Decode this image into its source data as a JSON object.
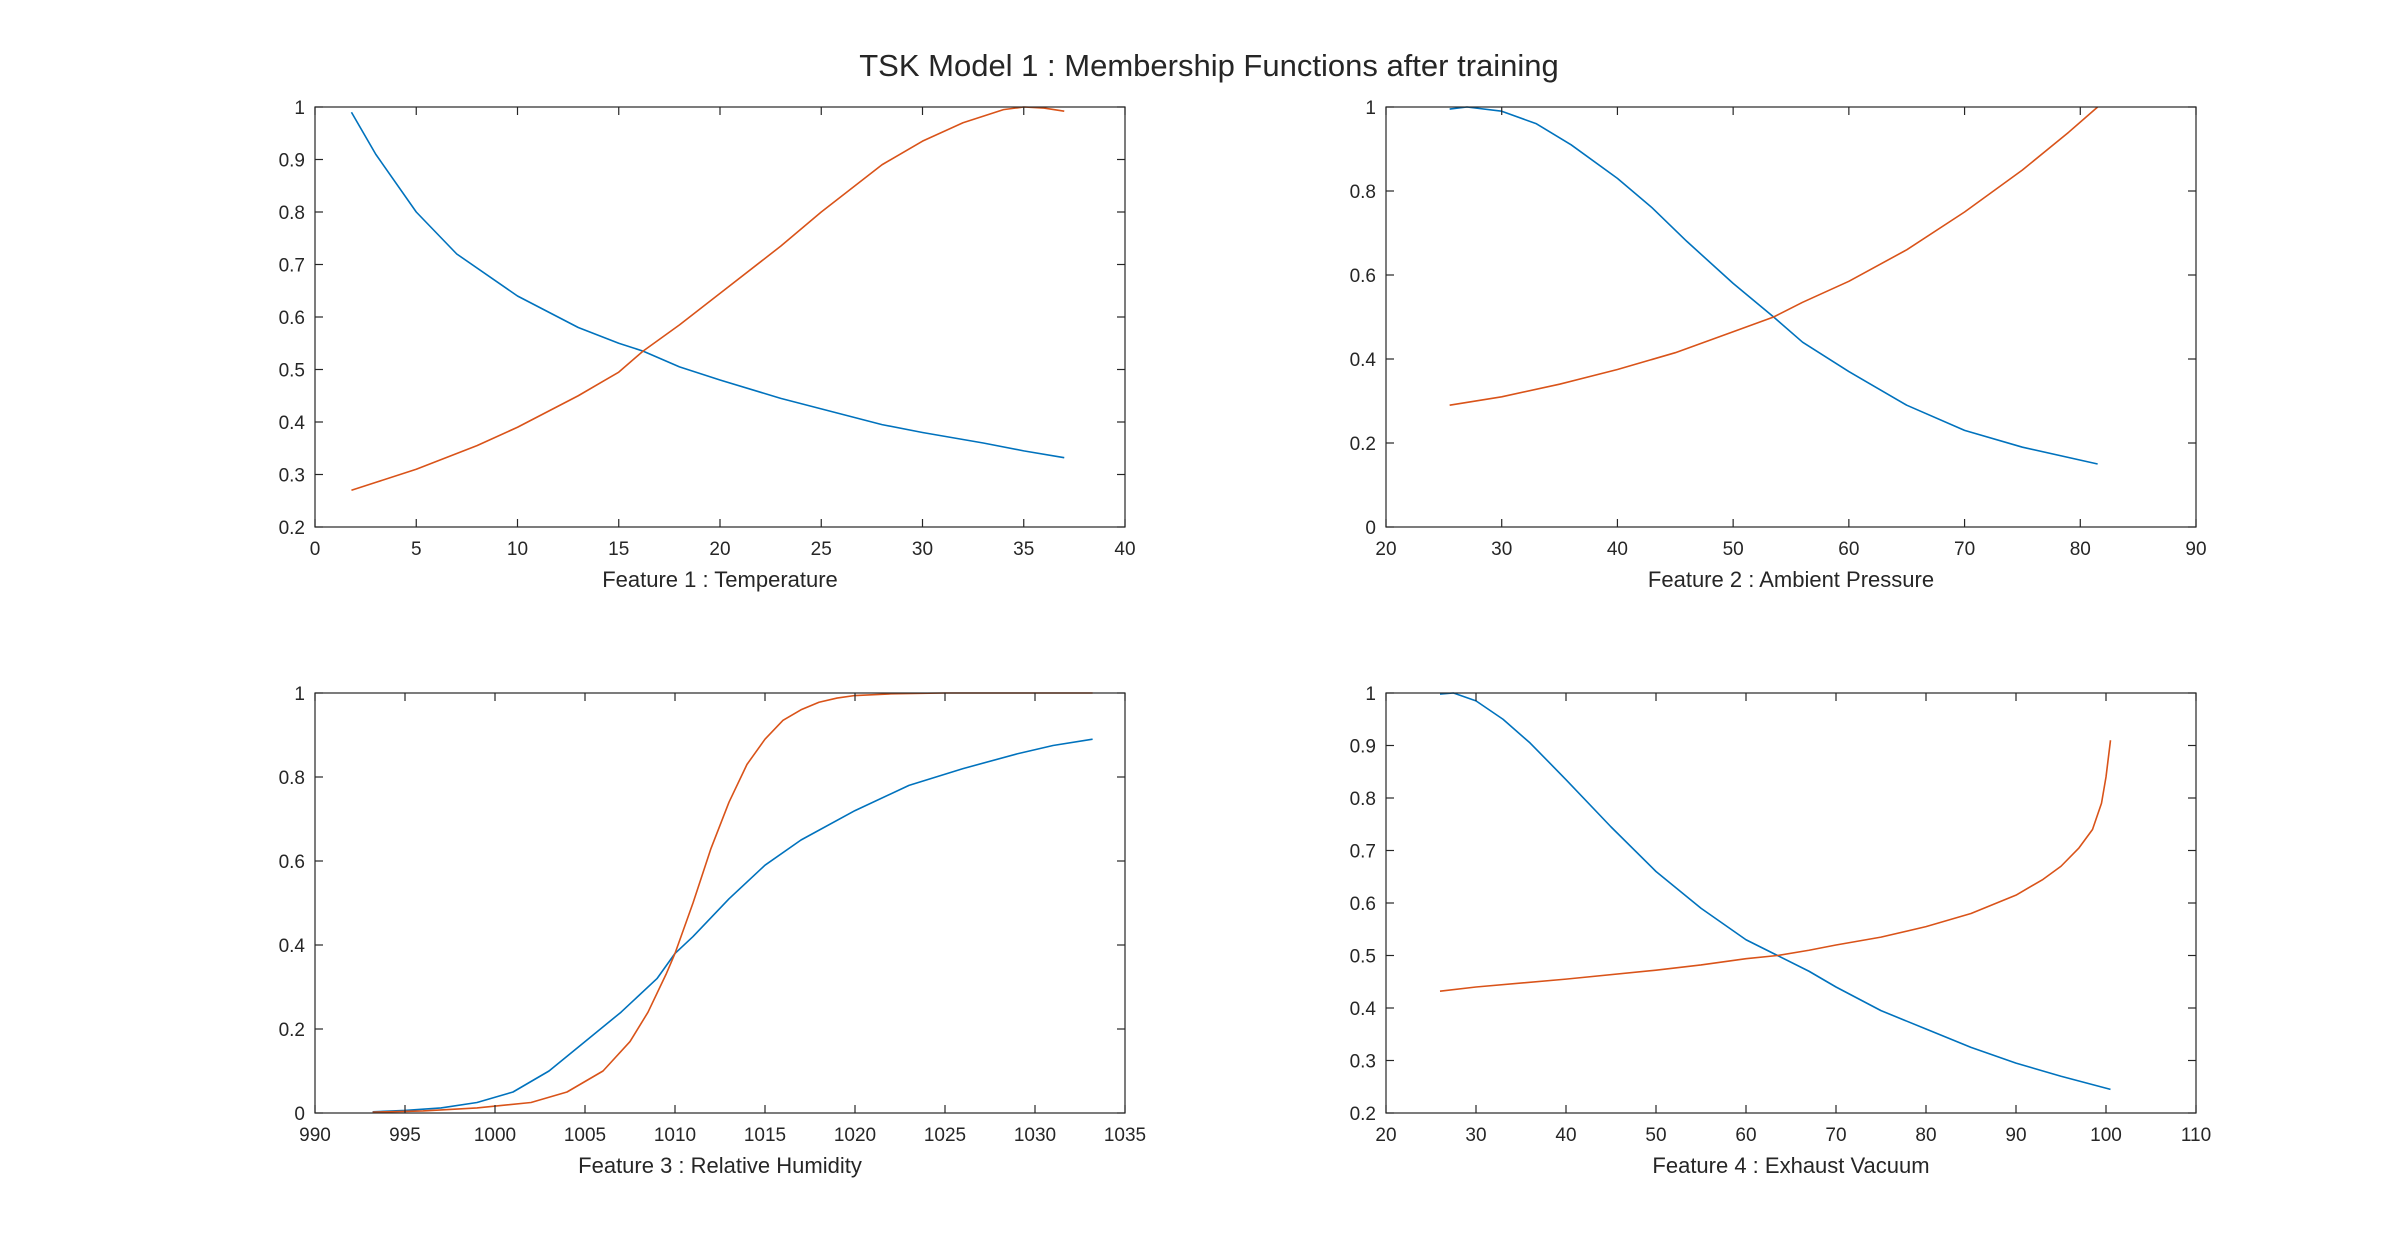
{
  "figure": {
    "title": "TSK Model 1 : Membership Functions after training",
    "colors": {
      "series1": "#0072BD",
      "series2": "#D95319",
      "axis": "#262626",
      "background": "#ffffff"
    }
  },
  "chart_data": [
    {
      "type": "line",
      "xlabel": "Feature 1  :  Temperature",
      "xlim": [
        0,
        40
      ],
      "ylim": [
        0.2,
        1
      ],
      "xticks": [
        0,
        5,
        10,
        15,
        20,
        25,
        30,
        35,
        40
      ],
      "yticks": [
        0.2,
        0.3,
        0.4,
        0.5,
        0.6,
        0.7,
        0.8,
        0.9,
        1
      ],
      "grid": false,
      "series": [
        {
          "color": "#0072BD",
          "points": [
            [
              1.8,
              0.99
            ],
            [
              3,
              0.91
            ],
            [
              5,
              0.8
            ],
            [
              7,
              0.72
            ],
            [
              10,
              0.64
            ],
            [
              13,
              0.58
            ],
            [
              15,
              0.55
            ],
            [
              16.2,
              0.535
            ],
            [
              18,
              0.505
            ],
            [
              20,
              0.48
            ],
            [
              23,
              0.445
            ],
            [
              25,
              0.425
            ],
            [
              28,
              0.395
            ],
            [
              30,
              0.38
            ],
            [
              33,
              0.36
            ],
            [
              35,
              0.345
            ],
            [
              37,
              0.332
            ]
          ]
        },
        {
          "color": "#D95319",
          "points": [
            [
              1.8,
              0.27
            ],
            [
              3,
              0.285
            ],
            [
              5,
              0.31
            ],
            [
              8,
              0.355
            ],
            [
              10,
              0.39
            ],
            [
              13,
              0.45
            ],
            [
              15,
              0.495
            ],
            [
              16.2,
              0.535
            ],
            [
              18,
              0.585
            ],
            [
              20,
              0.645
            ],
            [
              23,
              0.735
            ],
            [
              25,
              0.8
            ],
            [
              28,
              0.89
            ],
            [
              30,
              0.935
            ],
            [
              32,
              0.97
            ],
            [
              34,
              0.995
            ],
            [
              35,
              1.0
            ],
            [
              36,
              0.998
            ],
            [
              37,
              0.992
            ]
          ]
        }
      ]
    },
    {
      "type": "line",
      "xlabel": "Feature 2  :  Ambient Pressure",
      "xlim": [
        20,
        90
      ],
      "ylim": [
        0,
        1
      ],
      "xticks": [
        20,
        30,
        40,
        50,
        60,
        70,
        80,
        90
      ],
      "yticks": [
        0,
        0.2,
        0.4,
        0.6,
        0.8,
        1
      ],
      "grid": false,
      "series": [
        {
          "color": "#0072BD",
          "points": [
            [
              25.5,
              0.995
            ],
            [
              27,
              1.0
            ],
            [
              30,
              0.99
            ],
            [
              33,
              0.96
            ],
            [
              36,
              0.91
            ],
            [
              40,
              0.83
            ],
            [
              43,
              0.76
            ],
            [
              46,
              0.68
            ],
            [
              50,
              0.58
            ],
            [
              53.5,
              0.5
            ],
            [
              56,
              0.44
            ],
            [
              60,
              0.37
            ],
            [
              65,
              0.29
            ],
            [
              70,
              0.23
            ],
            [
              75,
              0.19
            ],
            [
              81.5,
              0.15
            ]
          ]
        },
        {
          "color": "#D95319",
          "points": [
            [
              25.5,
              0.29
            ],
            [
              30,
              0.31
            ],
            [
              35,
              0.34
            ],
            [
              40,
              0.375
            ],
            [
              45,
              0.415
            ],
            [
              50,
              0.465
            ],
            [
              53.5,
              0.5
            ],
            [
              56,
              0.535
            ],
            [
              60,
              0.585
            ],
            [
              65,
              0.66
            ],
            [
              70,
              0.75
            ],
            [
              75,
              0.85
            ],
            [
              79,
              0.94
            ],
            [
              81.5,
              1.0
            ]
          ]
        }
      ]
    },
    {
      "type": "line",
      "xlabel": "Feature 3  :  Relative Humidity",
      "xlim": [
        990,
        1035
      ],
      "ylim": [
        0,
        1
      ],
      "xticks": [
        990,
        995,
        1000,
        1005,
        1010,
        1015,
        1020,
        1025,
        1030,
        1035
      ],
      "yticks": [
        0,
        0.2,
        0.4,
        0.6,
        0.8,
        1
      ],
      "grid": false,
      "series": [
        {
          "color": "#0072BD",
          "points": [
            [
              993.2,
              0.003
            ],
            [
              995,
              0.006
            ],
            [
              997,
              0.012
            ],
            [
              999,
              0.025
            ],
            [
              1001,
              0.05
            ],
            [
              1003,
              0.1
            ],
            [
              1005,
              0.17
            ],
            [
              1007,
              0.24
            ],
            [
              1009,
              0.32
            ],
            [
              1010,
              0.38
            ],
            [
              1011,
              0.42
            ],
            [
              1013,
              0.51
            ],
            [
              1015,
              0.59
            ],
            [
              1017,
              0.65
            ],
            [
              1020,
              0.72
            ],
            [
              1023,
              0.78
            ],
            [
              1026,
              0.82
            ],
            [
              1029,
              0.855
            ],
            [
              1031,
              0.875
            ],
            [
              1033.2,
              0.89
            ]
          ]
        },
        {
          "color": "#D95319",
          "points": [
            [
              993.2,
              0.002
            ],
            [
              996,
              0.005
            ],
            [
              999,
              0.012
            ],
            [
              1002,
              0.025
            ],
            [
              1004,
              0.05
            ],
            [
              1006,
              0.1
            ],
            [
              1007.5,
              0.17
            ],
            [
              1008.5,
              0.24
            ],
            [
              1009.5,
              0.33
            ],
            [
              1010,
              0.38
            ],
            [
              1011,
              0.5
            ],
            [
              1012,
              0.63
            ],
            [
              1013,
              0.74
            ],
            [
              1014,
              0.83
            ],
            [
              1015,
              0.89
            ],
            [
              1016,
              0.935
            ],
            [
              1017,
              0.96
            ],
            [
              1018,
              0.978
            ],
            [
              1019,
              0.988
            ],
            [
              1020,
              0.994
            ],
            [
              1022,
              0.998
            ],
            [
              1025,
              1.0
            ],
            [
              1033.2,
              1.0
            ]
          ]
        }
      ]
    },
    {
      "type": "line",
      "xlabel": "Feature 4  :  Exhaust Vacuum",
      "xlim": [
        20,
        110
      ],
      "ylim": [
        0.2,
        1
      ],
      "xticks": [
        20,
        30,
        40,
        50,
        60,
        70,
        80,
        90,
        100,
        110
      ],
      "yticks": [
        0.2,
        0.3,
        0.4,
        0.5,
        0.6,
        0.7,
        0.8,
        0.9,
        1
      ],
      "grid": false,
      "series": [
        {
          "color": "#0072BD",
          "points": [
            [
              26,
              0.998
            ],
            [
              27.5,
              1.0
            ],
            [
              30,
              0.985
            ],
            [
              33,
              0.95
            ],
            [
              36,
              0.905
            ],
            [
              40,
              0.835
            ],
            [
              45,
              0.745
            ],
            [
              50,
              0.66
            ],
            [
              55,
              0.59
            ],
            [
              60,
              0.53
            ],
            [
              63.5,
              0.5
            ],
            [
              67,
              0.47
            ],
            [
              70,
              0.44
            ],
            [
              75,
              0.395
            ],
            [
              80,
              0.36
            ],
            [
              85,
              0.325
            ],
            [
              90,
              0.295
            ],
            [
              95,
              0.27
            ],
            [
              100.5,
              0.245
            ]
          ]
        },
        {
          "color": "#D95319",
          "points": [
            [
              26,
              0.432
            ],
            [
              30,
              0.44
            ],
            [
              40,
              0.455
            ],
            [
              50,
              0.472
            ],
            [
              55,
              0.482
            ],
            [
              60,
              0.494
            ],
            [
              63.5,
              0.5
            ],
            [
              67,
              0.51
            ],
            [
              70,
              0.52
            ],
            [
              75,
              0.535
            ],
            [
              80,
              0.555
            ],
            [
              85,
              0.58
            ],
            [
              90,
              0.615
            ],
            [
              93,
              0.645
            ],
            [
              95,
              0.67
            ],
            [
              97,
              0.705
            ],
            [
              98.5,
              0.74
            ],
            [
              99.5,
              0.79
            ],
            [
              100,
              0.84
            ],
            [
              100.5,
              0.91
            ]
          ]
        }
      ]
    }
  ]
}
